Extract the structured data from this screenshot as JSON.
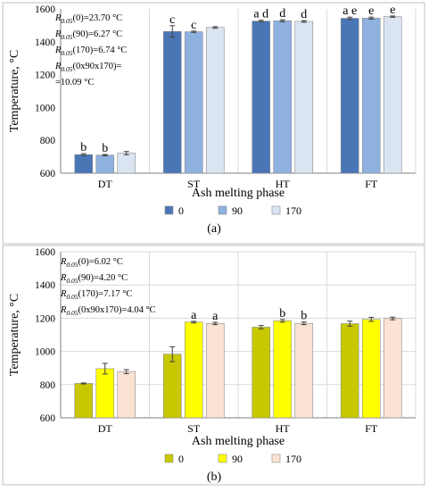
{
  "chart_data": [
    {
      "panel": "(a)",
      "type": "bar",
      "categories": [
        "DT",
        "ST",
        "HT",
        "FT"
      ],
      "series": [
        {
          "name": "0",
          "color": "#4a76b6",
          "values": [
            713,
            1463,
            1526,
            1543
          ],
          "errors": [
            6,
            35,
            5,
            7
          ]
        },
        {
          "name": "90",
          "color": "#8fb1e0",
          "values": [
            710,
            1461,
            1528,
            1544
          ],
          "errors": [
            4,
            4,
            6,
            6
          ]
        },
        {
          "name": "170",
          "color": "#dbe5f2",
          "values": [
            722,
            1487,
            1524,
            1553
          ],
          "errors": [
            10,
            5,
            5,
            4
          ]
        }
      ],
      "letters": [
        [
          "b",
          "b",
          ""
        ],
        [
          "c",
          "c",
          ""
        ],
        [
          "a d",
          "d",
          "d"
        ],
        [
          "a e",
          "e",
          "e"
        ]
      ],
      "ylim": [
        600,
        1600
      ],
      "yticks": [
        "600",
        "800",
        "1000",
        "1200",
        "1400",
        "1600"
      ],
      "ylabel": "Temperature, °C",
      "xlabel": "Ash melting phase",
      "grid": "vertical separators",
      "legend": "bottom",
      "annotations": [
        {
          "sub": "0.05",
          "arg": "(0)=23.70 °C"
        },
        {
          "sub": "0.05",
          "arg": "(90)=6.27 °C"
        },
        {
          "sub": "0.05",
          "arg": "(170)=6.74 °C"
        },
        {
          "sub": "0.05",
          "arg": "(0x90x170)="
        },
        {
          "plain": "=10.09 °C"
        }
      ]
    },
    {
      "panel": "(b)",
      "type": "bar",
      "categories": [
        "DT",
        "ST",
        "HT",
        "FT"
      ],
      "series": [
        {
          "name": "0",
          "color": "#c8c800",
          "values": [
            807,
            983,
            1146,
            1167
          ],
          "errors": [
            3,
            45,
            10,
            15
          ]
        },
        {
          "name": "90",
          "color": "#ffff00",
          "values": [
            896,
            1176,
            1184,
            1193
          ],
          "errors": [
            32,
            5,
            8,
            12
          ]
        },
        {
          "name": "170",
          "color": "#fbe3d4",
          "values": [
            878,
            1168,
            1169,
            1198
          ],
          "errors": [
            12,
            7,
            8,
            8
          ]
        }
      ],
      "letters": [
        [
          "",
          "",
          ""
        ],
        [
          "",
          "a",
          "a"
        ],
        [
          "",
          "b",
          "b"
        ],
        [
          "",
          "",
          ""
        ]
      ],
      "ylim": [
        600,
        1600
      ],
      "yticks": [
        "600",
        "800",
        "1000",
        "1200",
        "1400",
        "1600"
      ],
      "ylabel": "Temperature, °C",
      "xlabel": "Ash melting phase",
      "grid": "horizontal and vertical",
      "legend": "bottom",
      "annotations": [
        {
          "sub": "0.05",
          "arg": "(0)=6.02 °C"
        },
        {
          "sub": "0.05",
          "arg": "(90)=4.20 °C"
        },
        {
          "sub": "0.05",
          "arg": "(170)=7.17 °C"
        },
        {
          "sub": "0.05",
          "arg": "(0x90x170)=4.04 °C"
        }
      ]
    }
  ]
}
